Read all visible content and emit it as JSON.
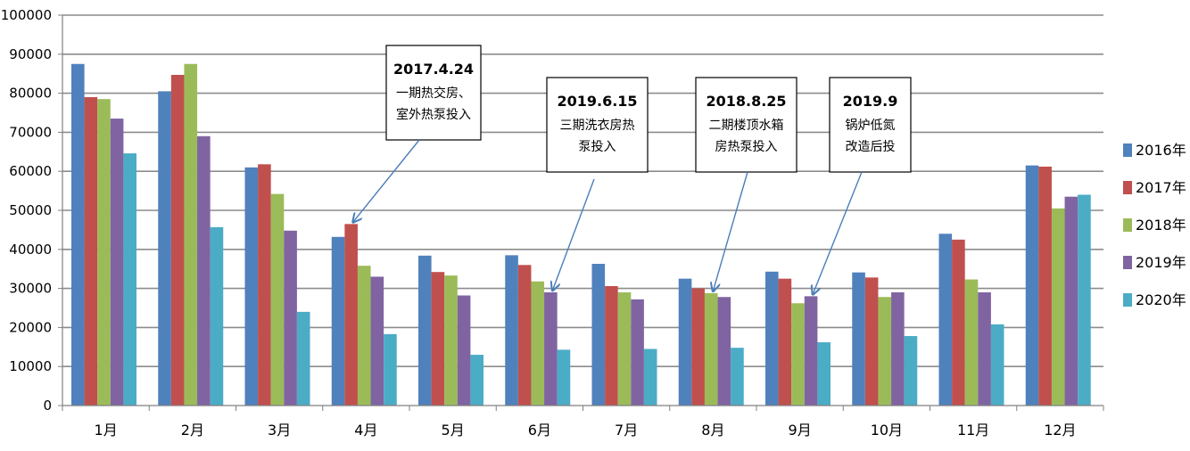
{
  "chart_data": {
    "type": "bar",
    "title": "",
    "xlabel": "",
    "ylabel": "",
    "ylim": [
      0,
      100000
    ],
    "yticks": [
      0,
      10000,
      20000,
      30000,
      40000,
      50000,
      60000,
      70000,
      80000,
      90000,
      100000
    ],
    "grid": true,
    "legend_position": "right",
    "categories": [
      "1月",
      "2月",
      "3月",
      "4月",
      "5月",
      "6月",
      "7月",
      "8月",
      "9月",
      "10月",
      "11月",
      "12月"
    ],
    "series": [
      {
        "name": "2016年",
        "color": "#4f81bd",
        "values": [
          87500,
          80500,
          61000,
          43200,
          38400,
          38500,
          36300,
          32500,
          34300,
          34100,
          44000,
          61500
        ]
      },
      {
        "name": "2017年",
        "color": "#c0504d",
        "values": [
          79000,
          84700,
          61800,
          46500,
          34200,
          36000,
          30600,
          30000,
          32500,
          32800,
          42500,
          61200
        ]
      },
      {
        "name": "2018年",
        "color": "#9bbb59",
        "values": [
          78500,
          87500,
          54200,
          35800,
          33300,
          31800,
          29000,
          28800,
          26200,
          27800,
          32300,
          50500
        ]
      },
      {
        "name": "2019年",
        "color": "#8064a2",
        "values": [
          73500,
          69000,
          44800,
          33000,
          28200,
          29000,
          27200,
          27800,
          28000,
          29000,
          29000,
          53500
        ]
      },
      {
        "name": "2020年",
        "color": "#4bacc6",
        "values": [
          64600,
          45700,
          24000,
          18300,
          13000,
          14300,
          14500,
          14800,
          16200,
          17800,
          20800,
          54000
        ]
      }
    ],
    "annotations": [
      {
        "title": "2017.4.24",
        "lines": [
          "一期热交房、",
          "室外热泵投入"
        ],
        "target_category": "4月",
        "target_series": "2017年"
      },
      {
        "title": "2019.6.15",
        "lines": [
          "三期洗衣房热",
          "泵投入"
        ],
        "target_category": "6月",
        "target_series": "2019年"
      },
      {
        "title": "2018.8.25",
        "lines": [
          "二期楼顶水箱",
          "房热泵投入"
        ],
        "target_category": "8月",
        "target_series": "2018年"
      },
      {
        "title": "2019.9",
        "lines": [
          "锅炉低氮",
          "改造后投"
        ],
        "target_category": "9月",
        "target_series": "2019年"
      }
    ]
  }
}
